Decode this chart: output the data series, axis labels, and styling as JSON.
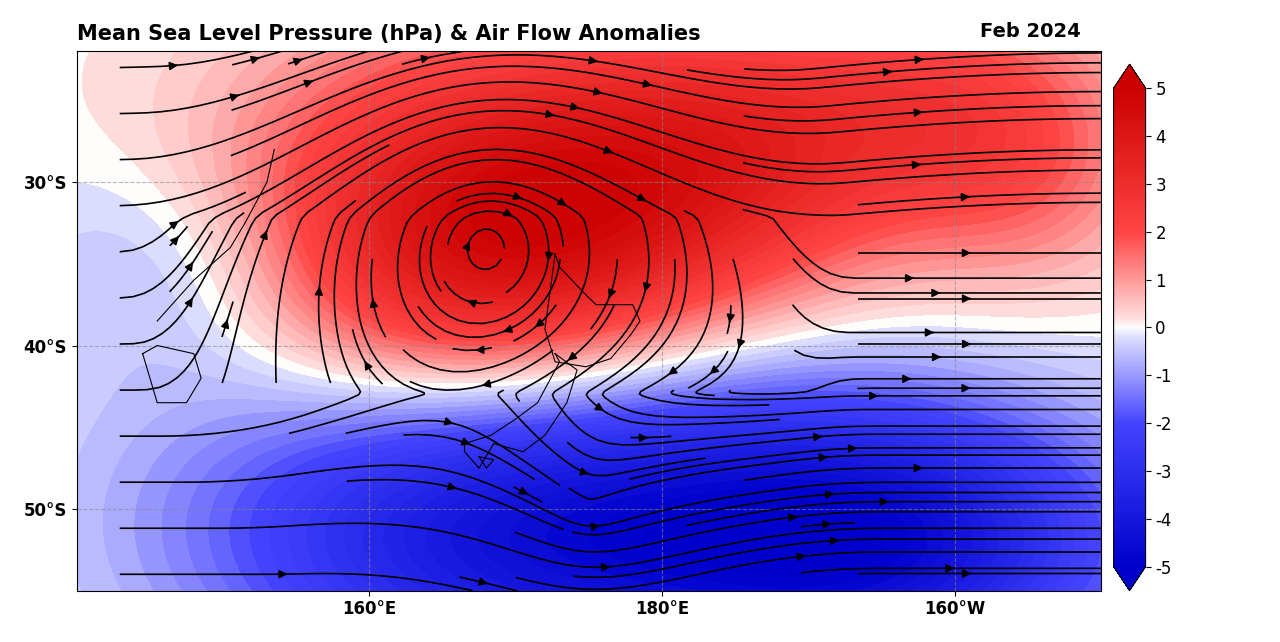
{
  "title": "Mean Sea Level Pressure (hPa) & Air Flow Anomalies",
  "date_label": "Feb 2024",
  "lon_min": 140,
  "lon_max": 210,
  "lat_min": -55,
  "lat_max": -22,
  "xticks": [
    160,
    180,
    200
  ],
  "xtick_labels": [
    "160°E",
    "180°E",
    "160°W"
  ],
  "yticks": [
    -50,
    -40,
    -30
  ],
  "ytick_labels": [
    "50°S",
    "40°S",
    "30°S"
  ],
  "colorbar_min": -5,
  "colorbar_max": 5,
  "colorbar_ticks": [
    -5,
    -4,
    -3,
    -2,
    -1,
    0,
    1,
    2,
    3,
    4,
    5
  ],
  "background_color": "#ffffff",
  "grid_color": "#888888",
  "grid_alpha": 0.6,
  "grid_linestyle": "--"
}
